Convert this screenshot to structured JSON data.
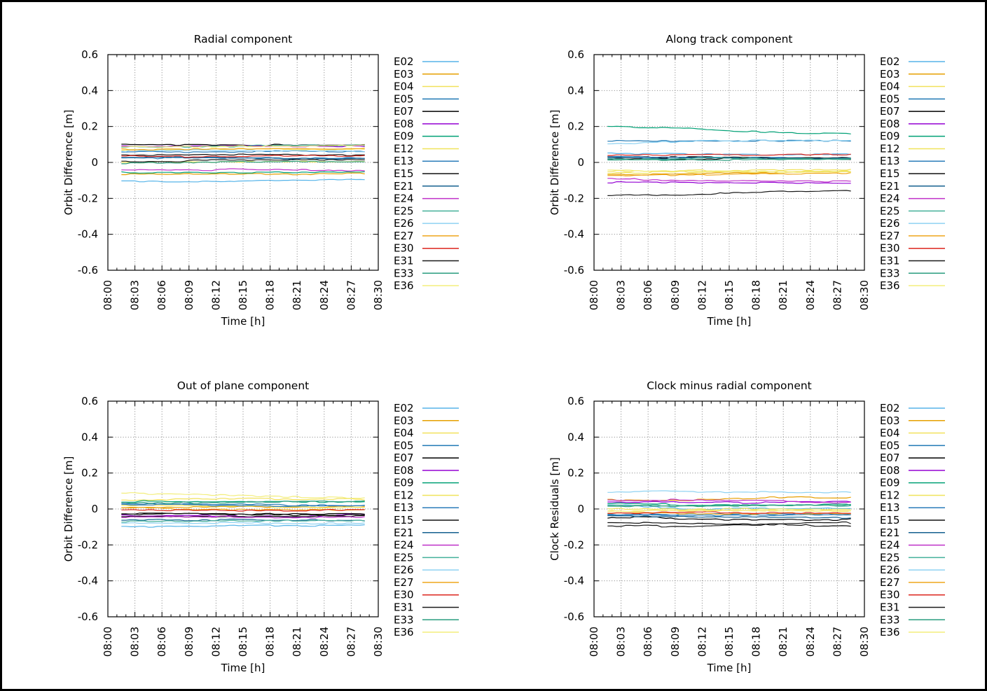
{
  "figure": {
    "background": "#ffffff",
    "border_color": "#000000",
    "grid_color": "#808080",
    "axis_color": "#000000"
  },
  "satellites": [
    {
      "id": "E02",
      "color": "#56b4e9"
    },
    {
      "id": "E03",
      "color": "#e69f00"
    },
    {
      "id": "E04",
      "color": "#f1e15b"
    },
    {
      "id": "E05",
      "color": "#1f78b4"
    },
    {
      "id": "E07",
      "color": "#000000"
    },
    {
      "id": "E08",
      "color": "#9400d3"
    },
    {
      "id": "E09",
      "color": "#00a075"
    },
    {
      "id": "E12",
      "color": "#efe35a"
    },
    {
      "id": "E13",
      "color": "#2b7cba"
    },
    {
      "id": "E15",
      "color": "#101010"
    },
    {
      "id": "E21",
      "color": "#15608f"
    },
    {
      "id": "E24",
      "color": "#bf30c9"
    },
    {
      "id": "E25",
      "color": "#44b09a"
    },
    {
      "id": "E26",
      "color": "#8fd2f2"
    },
    {
      "id": "E27",
      "color": "#efa61c"
    },
    {
      "id": "E30",
      "color": "#dc261e"
    },
    {
      "id": "E31",
      "color": "#1a1a1a"
    },
    {
      "id": "E33",
      "color": "#2a9d7f"
    },
    {
      "id": "E36",
      "color": "#f3ee7d"
    }
  ],
  "chart_data": [
    {
      "type": "line",
      "title": "Radial component",
      "xlabel": "Time [h]",
      "ylabel": "Orbit Difference [m]",
      "x_tick_labels": [
        "08:00",
        "08:03",
        "08:06",
        "08:09",
        "08:12",
        "08:15",
        "08:18",
        "08:21",
        "08:24",
        "08:27",
        "08:30"
      ],
      "y_tick_labels": [
        "0.6",
        "0.4",
        "0.2",
        "0",
        "-0.2",
        "-0.4",
        "-0.6"
      ],
      "ylim": [
        -0.6,
        0.6
      ],
      "grid": true,
      "legend_position": "right-outside",
      "x_control_minutes": [
        1.5,
        10,
        19,
        28.5
      ],
      "series": [
        {
          "name": "E02",
          "y": [
            -0.105,
            -0.102,
            -0.096,
            -0.09
          ]
        },
        {
          "name": "E03",
          "y": [
            -0.065,
            -0.063,
            -0.062,
            -0.06
          ]
        },
        {
          "name": "E04",
          "y": [
            0.07,
            0.072,
            0.07,
            0.068
          ]
        },
        {
          "name": "E05",
          "y": [
            0.025,
            0.022,
            0.02,
            0.02
          ]
        },
        {
          "name": "E07",
          "y": [
            0.1,
            0.097,
            0.093,
            0.09
          ]
        },
        {
          "name": "E08",
          "y": [
            0.09,
            0.09,
            0.088,
            0.085
          ]
        },
        {
          "name": "E09",
          "y": [
            -0.055,
            -0.053,
            -0.052,
            -0.05
          ]
        },
        {
          "name": "E12",
          "y": [
            0.0,
            0.002,
            0.004,
            0.005
          ]
        },
        {
          "name": "E13",
          "y": [
            0.06,
            0.058,
            0.056,
            0.055
          ]
        },
        {
          "name": "E15",
          "y": [
            0.04,
            0.042,
            0.044,
            0.045
          ]
        },
        {
          "name": "E21",
          "y": [
            0.03,
            0.027,
            0.023,
            0.02
          ]
        },
        {
          "name": "E24",
          "y": [
            -0.04,
            -0.042,
            -0.044,
            -0.045
          ]
        },
        {
          "name": "E25",
          "y": [
            0.085,
            0.087,
            0.088,
            0.09
          ]
        },
        {
          "name": "E26",
          "y": [
            0.065,
            0.063,
            0.061,
            0.06
          ]
        },
        {
          "name": "E27",
          "y": [
            0.075,
            0.077,
            0.078,
            0.08
          ]
        },
        {
          "name": "E30",
          "y": [
            0.035,
            0.033,
            0.031,
            0.03
          ]
        },
        {
          "name": "E31",
          "y": [
            0.005,
            0.007,
            0.009,
            0.01
          ]
        },
        {
          "name": "E33",
          "y": [
            -0.005,
            -0.003,
            -0.001,
            0.0
          ]
        },
        {
          "name": "E36",
          "y": [
            0.09,
            0.092,
            0.094,
            0.095
          ]
        }
      ]
    },
    {
      "type": "line",
      "title": "Along track component",
      "xlabel": "Time [h]",
      "ylabel": "Orbit Difference [m]",
      "x_tick_labels": [
        "08:00",
        "08:03",
        "08:06",
        "08:09",
        "08:12",
        "08:15",
        "08:18",
        "08:21",
        "08:24",
        "08:27",
        "08:30"
      ],
      "y_tick_labels": [
        "0.6",
        "0.4",
        "0.2",
        "0",
        "-0.2",
        "-0.4",
        "-0.6"
      ],
      "ylim": [
        -0.6,
        0.6
      ],
      "grid": true,
      "legend_position": "right-outside",
      "x_control_minutes": [
        1.5,
        10,
        19,
        28.5
      ],
      "series": [
        {
          "name": "E02",
          "y": [
            0.05,
            0.046,
            0.042,
            0.04
          ]
        },
        {
          "name": "E03",
          "y": [
            -0.07,
            -0.064,
            -0.057,
            -0.05
          ]
        },
        {
          "name": "E04",
          "y": [
            -0.05,
            -0.047,
            -0.043,
            -0.04
          ]
        },
        {
          "name": "E05",
          "y": [
            0.12,
            0.121,
            0.12,
            0.12
          ]
        },
        {
          "name": "E07",
          "y": [
            0.03,
            0.027,
            0.023,
            0.02
          ]
        },
        {
          "name": "E08",
          "y": [
            -0.115,
            -0.117,
            -0.119,
            -0.12
          ]
        },
        {
          "name": "E09",
          "y": [
            0.2,
            0.185,
            0.162,
            0.152
          ]
        },
        {
          "name": "E12",
          "y": [
            -0.06,
            -0.058,
            -0.056,
            -0.055
          ]
        },
        {
          "name": "E13",
          "y": [
            0.035,
            0.033,
            0.031,
            0.03
          ]
        },
        {
          "name": "E15",
          "y": [
            0.02,
            0.018,
            0.02,
            0.022
          ]
        },
        {
          "name": "E21",
          "y": [
            0.025,
            0.023,
            0.021,
            0.02
          ]
        },
        {
          "name": "E24",
          "y": [
            -0.09,
            -0.094,
            -0.098,
            -0.1
          ]
        },
        {
          "name": "E25",
          "y": [
            0.02,
            0.023,
            0.024,
            0.025
          ]
        },
        {
          "name": "E26",
          "y": [
            0.105,
            0.112,
            0.122,
            0.13
          ]
        },
        {
          "name": "E27",
          "y": [
            -0.075,
            -0.07,
            -0.064,
            -0.06
          ]
        },
        {
          "name": "E30",
          "y": [
            0.04,
            0.042,
            0.043,
            0.045
          ]
        },
        {
          "name": "E31",
          "y": [
            -0.185,
            -0.178,
            -0.169,
            -0.162
          ]
        },
        {
          "name": "E33",
          "y": [
            0.015,
            0.017,
            0.018,
            0.02
          ]
        },
        {
          "name": "E36",
          "y": [
            -0.045,
            -0.047,
            -0.048,
            -0.05
          ]
        }
      ]
    },
    {
      "type": "line",
      "title": "Out of plane component",
      "xlabel": "Time [h]",
      "ylabel": "Orbit Difference [m]",
      "x_tick_labels": [
        "08:00",
        "08:03",
        "08:06",
        "08:09",
        "08:12",
        "08:15",
        "08:18",
        "08:21",
        "08:24",
        "08:27",
        "08:30"
      ],
      "y_tick_labels": [
        "0.6",
        "0.4",
        "0.2",
        "0",
        "-0.2",
        "-0.4",
        "-0.6"
      ],
      "ylim": [
        -0.6,
        0.6
      ],
      "grid": true,
      "legend_position": "right-outside",
      "x_control_minutes": [
        1.5,
        10,
        19,
        28.5
      ],
      "series": [
        {
          "name": "E02",
          "y": [
            -0.1,
            -0.096,
            -0.09,
            -0.085
          ]
        },
        {
          "name": "E03",
          "y": [
            0.01,
            0.008,
            0.006,
            0.005
          ]
        },
        {
          "name": "E04",
          "y": [
            0.05,
            0.052,
            0.054,
            0.055
          ]
        },
        {
          "name": "E05",
          "y": [
            0.03,
            0.028,
            0.026,
            0.025
          ]
        },
        {
          "name": "E07",
          "y": [
            -0.03,
            -0.032,
            -0.034,
            -0.035
          ]
        },
        {
          "name": "E08",
          "y": [
            -0.035,
            -0.035,
            -0.035,
            -0.035
          ]
        },
        {
          "name": "E09",
          "y": [
            0.04,
            0.042,
            0.043,
            0.045
          ]
        },
        {
          "name": "E12",
          "y": [
            0.02,
            0.018,
            0.016,
            0.015
          ]
        },
        {
          "name": "E13",
          "y": [
            0.025,
            0.023,
            0.021,
            0.02
          ]
        },
        {
          "name": "E15",
          "y": [
            -0.04,
            -0.04,
            -0.04,
            -0.04
          ]
        },
        {
          "name": "E21",
          "y": [
            -0.06,
            -0.062,
            -0.064,
            -0.065
          ]
        },
        {
          "name": "E24",
          "y": [
            -0.045,
            -0.043,
            -0.041,
            -0.04
          ]
        },
        {
          "name": "E25",
          "y": [
            -0.07,
            -0.068,
            -0.066,
            -0.065
          ]
        },
        {
          "name": "E26",
          "y": [
            -0.08,
            -0.078,
            -0.076,
            -0.075
          ]
        },
        {
          "name": "E27",
          "y": [
            0.005,
            0.003,
            0.001,
            0.0
          ]
        },
        {
          "name": "E30",
          "y": [
            -0.005,
            -0.007,
            -0.009,
            -0.01
          ]
        },
        {
          "name": "E31",
          "y": [
            -0.025,
            -0.027,
            -0.029,
            -0.03
          ]
        },
        {
          "name": "E33",
          "y": [
            0.035,
            0.04,
            0.046,
            0.05
          ]
        },
        {
          "name": "E36",
          "y": [
            0.09,
            0.085,
            0.072,
            0.065
          ]
        }
      ]
    },
    {
      "type": "line",
      "title": "Clock minus radial component",
      "xlabel": "Time [h]",
      "ylabel": "Clock Residuals [m]",
      "x_tick_labels": [
        "08:00",
        "08:03",
        "08:06",
        "08:09",
        "08:12",
        "08:15",
        "08:18",
        "08:21",
        "08:24",
        "08:27",
        "08:30"
      ],
      "y_tick_labels": [
        "0.6",
        "0.4",
        "0.2",
        "0",
        "-0.2",
        "-0.4",
        "-0.6"
      ],
      "ylim": [
        -0.6,
        0.6
      ],
      "grid": true,
      "legend_position": "right-outside",
      "x_control_minutes": [
        1.5,
        10,
        19,
        28.5
      ],
      "series": [
        {
          "name": "E02",
          "y": [
            0.025,
            0.002,
            0.0,
            0.0
          ]
        },
        {
          "name": "E03",
          "y": [
            0.045,
            0.047,
            0.058,
            0.06
          ]
        },
        {
          "name": "E04",
          "y": [
            -0.01,
            -0.012,
            -0.014,
            -0.015
          ]
        },
        {
          "name": "E05",
          "y": [
            -0.03,
            -0.032,
            -0.034,
            -0.035
          ]
        },
        {
          "name": "E07",
          "y": [
            -0.05,
            -0.052,
            -0.054,
            -0.055
          ]
        },
        {
          "name": "E08",
          "y": [
            0.04,
            0.038,
            0.036,
            0.035
          ]
        },
        {
          "name": "E09",
          "y": [
            0.03,
            0.028,
            0.026,
            0.025
          ]
        },
        {
          "name": "E12",
          "y": [
            0.0,
            -0.002,
            -0.004,
            -0.005
          ]
        },
        {
          "name": "E13",
          "y": [
            -0.035,
            -0.033,
            -0.031,
            -0.03
          ]
        },
        {
          "name": "E15",
          "y": [
            -0.075,
            -0.08,
            -0.086,
            -0.09
          ]
        },
        {
          "name": "E21",
          "y": [
            -0.04,
            -0.042,
            -0.044,
            -0.045
          ]
        },
        {
          "name": "E24",
          "y": [
            0.05,
            0.046,
            0.04,
            0.035
          ]
        },
        {
          "name": "E25",
          "y": [
            0.02,
            0.018,
            0.016,
            0.015
          ]
        },
        {
          "name": "E26",
          "y": [
            0.095,
            0.097,
            0.098,
            0.1
          ]
        },
        {
          "name": "E27",
          "y": [
            -0.02,
            -0.022,
            -0.024,
            -0.025
          ]
        },
        {
          "name": "E30",
          "y": [
            -0.025,
            -0.023,
            -0.021,
            -0.02
          ]
        },
        {
          "name": "E31",
          "y": [
            -0.095,
            -0.09,
            -0.082,
            -0.075
          ]
        },
        {
          "name": "E33",
          "y": [
            0.015,
            0.017,
            0.018,
            0.02
          ]
        },
        {
          "name": "E36",
          "y": [
            -0.015,
            -0.013,
            -0.011,
            -0.01
          ]
        }
      ]
    }
  ]
}
